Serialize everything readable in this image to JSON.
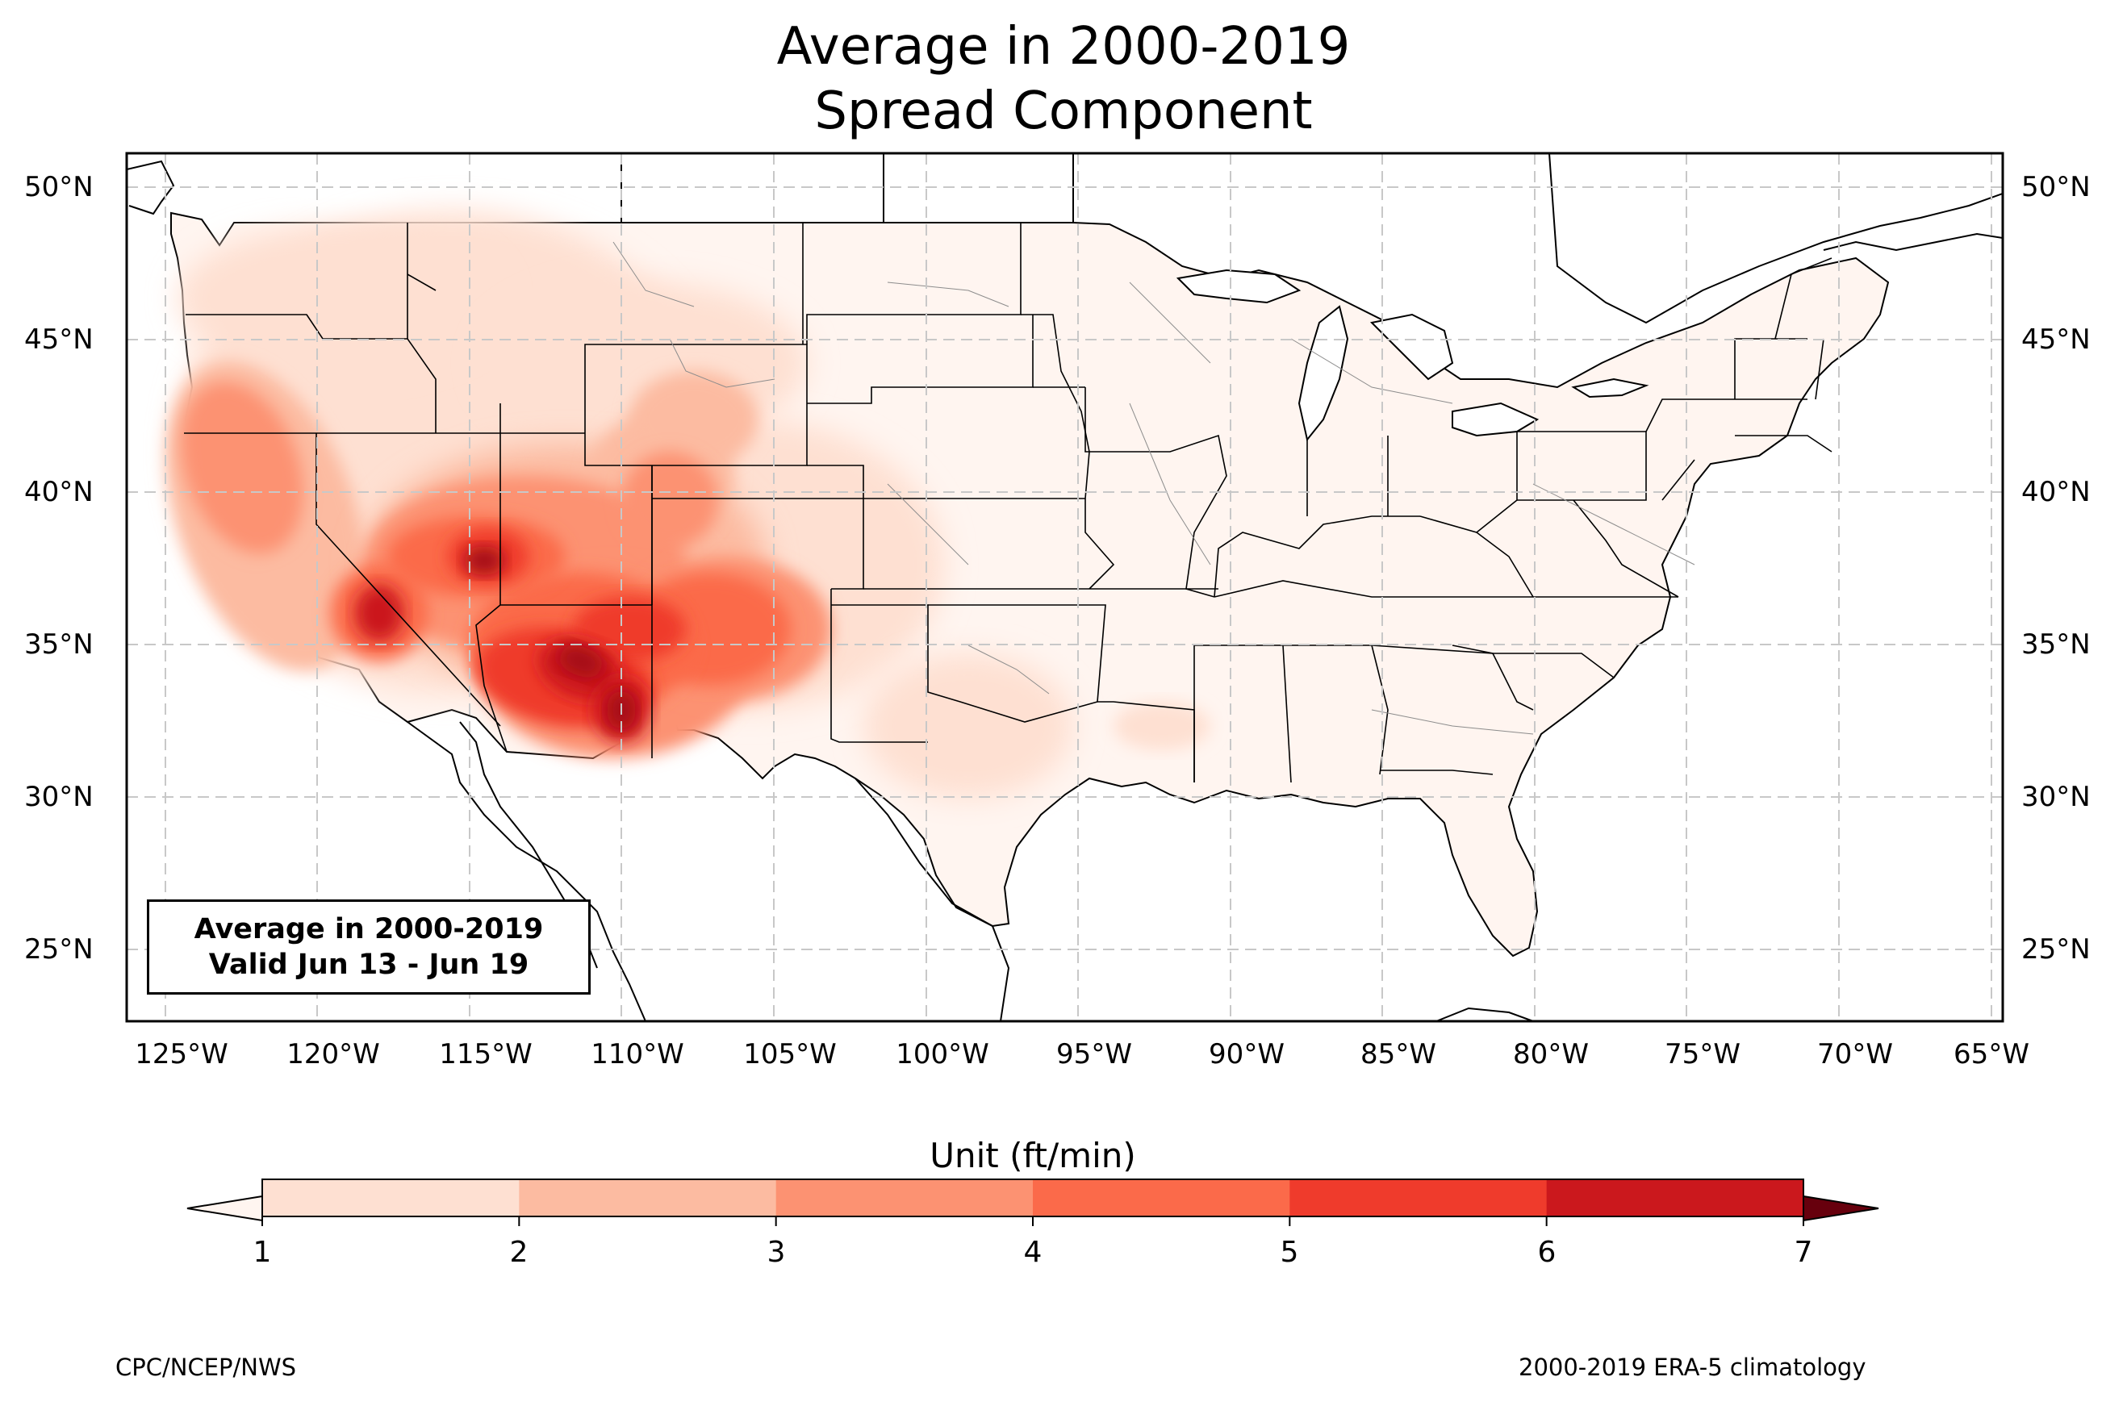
{
  "title": {
    "line1": "Average in 2000-2019",
    "line2": "Spread Component"
  },
  "annotation": {
    "line1": "Average in 2000-2019",
    "line2": "Valid Jun 13 - Jun 19"
  },
  "lat_labels": [
    "50°N",
    "45°N",
    "40°N",
    "35°N",
    "30°N",
    "25°N"
  ],
  "lon_labels": [
    "125°W",
    "120°W",
    "115°W",
    "110°W",
    "105°W",
    "100°W",
    "95°W",
    "90°W",
    "85°W",
    "80°W",
    "75°W",
    "70°W",
    "65°W"
  ],
  "colorbar": {
    "title": "Unit (ft/min)",
    "ticks": [
      "1",
      "2",
      "3",
      "4",
      "5",
      "6",
      "7"
    ],
    "levels": [
      1,
      2,
      3,
      4,
      5,
      6,
      7
    ],
    "colors": [
      "#fee0d2",
      "#fcbba1",
      "#fc9272",
      "#fb6a4a",
      "#ef3b2c",
      "#cb181d",
      "#a50f15"
    ],
    "under_color": "#fff5f0",
    "over_color": "#67000d"
  },
  "footer": {
    "left": "CPC/NCEP/NWS",
    "right": "2000-2019 ERA-5 climatology"
  },
  "map": {
    "extent": {
      "lon_min": -126.3,
      "lon_max": -64.9,
      "lat_min": 22.8,
      "lat_max": 51.2
    },
    "gridlines": true,
    "variable": "Spread Component",
    "hotspot_region": "Desert Southwest (Arizona, southern Nevada, Utah, western New Mexico)"
  }
}
